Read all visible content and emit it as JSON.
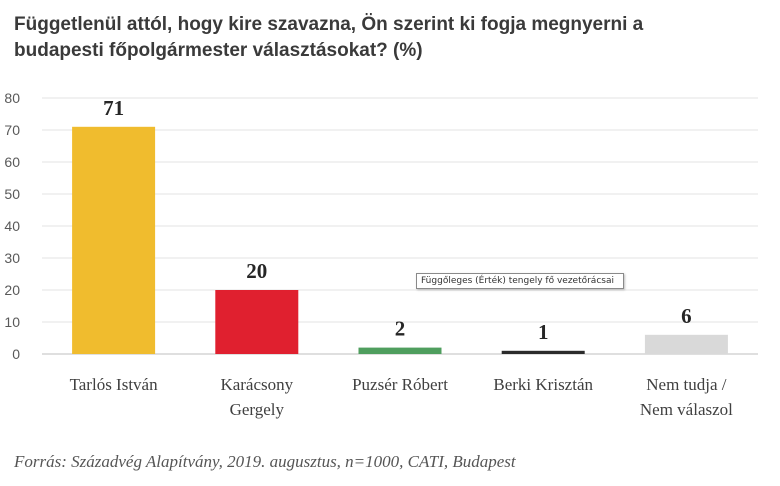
{
  "chart_data": {
    "type": "bar",
    "title": "Függetlenül attól, hogy kire szavazna, Ön szerint ki fogja megnyerni a budapesti főpolgármester választásokat? (%)",
    "categories": [
      [
        "Tarlós István"
      ],
      [
        "Karácsony",
        "Gergely"
      ],
      [
        "Puzsér Róbert"
      ],
      [
        "Berki Krisztán"
      ],
      [
        "Nem tudja /",
        "Nem válaszol"
      ]
    ],
    "values": [
      71,
      20,
      2,
      1,
      6
    ],
    "bar_colors": [
      "#f0bc2e",
      "#e0202f",
      "#4f9e5e",
      "#2b2b2b",
      "#d9d9d9"
    ],
    "yticks": [
      0,
      10,
      20,
      30,
      40,
      50,
      60,
      70,
      80
    ],
    "ylim": [
      0,
      80
    ],
    "grid": true,
    "xlabel": "",
    "ylabel": ""
  },
  "source": "Forrás: Századvég Alapítvány, 2019. augusztus, n=1000, CATI, Budapest",
  "tooltip": "Függőleges (Érték) tengely fő vezetőrácsai"
}
